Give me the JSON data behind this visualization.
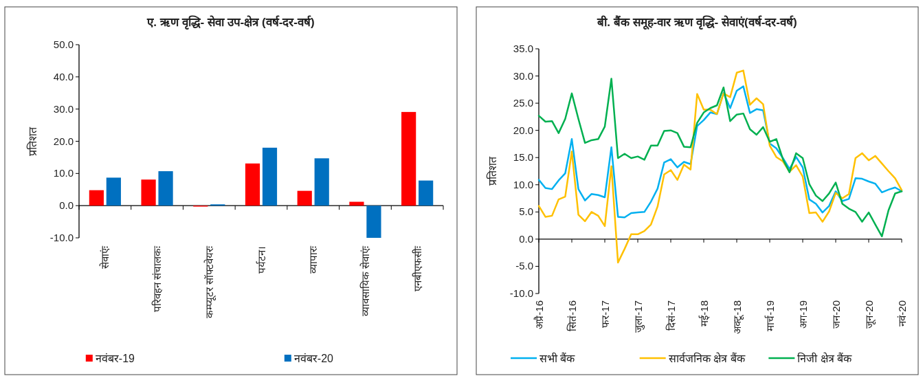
{
  "chart_data": [
    {
      "type": "bar",
      "title": "ए. ऋण वृद्धि- सेवा उप-क्षेत्र (वर्ष-दर-वर्ष)",
      "ylabel": "प्रतिशत",
      "legend": "bottom",
      "categories": [
        "सेवाएंः",
        "परिवहन संचालकः",
        "कम्प्यूटर सॉफ्टवेयरः",
        "पर्यटन।",
        "व्यापारः",
        "व्यावसायिक सेवाएंः",
        "एनबीएफसीः"
      ],
      "series": [
        {
          "name": "नवंबर-19",
          "color": "#ff0000",
          "values": [
            4.8,
            8.1,
            -0.3,
            13.1,
            4.6,
            1.2,
            29.1
          ]
        },
        {
          "name": "नवंबर-20",
          "color": "#0070c0",
          "values": [
            8.7,
            10.7,
            0.4,
            18.0,
            14.7,
            -10.0,
            7.8
          ]
        }
      ],
      "ylim": [
        -10,
        50
      ],
      "yticks": [
        {
          "value": -10,
          "label": "-10.0"
        },
        {
          "value": 0,
          "label": "0.0"
        },
        {
          "value": 10,
          "label": "10.0"
        },
        {
          "value": 20,
          "label": "20.0"
        },
        {
          "value": 30,
          "label": "30.0"
        },
        {
          "value": 40,
          "label": "40.0"
        },
        {
          "value": 50,
          "label": "50.0"
        }
      ]
    },
    {
      "type": "line",
      "title": "बी. बैंक समूह-वार ऋण वृद्धि- सेवाएं(वर्ष-दर-वर्ष)",
      "ylabel": "प्रतिशत",
      "legend": "bottom",
      "x": [
        "2016-04",
        "2016-05",
        "2016-06",
        "2016-07",
        "2016-08",
        "2016-09",
        "2016-10",
        "2016-11",
        "2016-12",
        "2017-01",
        "2017-02",
        "2017-03",
        "2017-04",
        "2017-05",
        "2017-06",
        "2017-07",
        "2017-08",
        "2017-09",
        "2017-10",
        "2017-11",
        "2017-12",
        "2018-01",
        "2018-02",
        "2018-03",
        "2018-04",
        "2018-05",
        "2018-06",
        "2018-07",
        "2018-08",
        "2018-09",
        "2018-10",
        "2018-11",
        "2018-12",
        "2019-01",
        "2019-02",
        "2019-03",
        "2019-04",
        "2019-05",
        "2019-06",
        "2019-07",
        "2019-08",
        "2019-09",
        "2019-10",
        "2019-11",
        "2019-12",
        "2020-01",
        "2020-02",
        "2020-03",
        "2020-04",
        "2020-05",
        "2020-06",
        "2020-07",
        "2020-08",
        "2020-09",
        "2020-10",
        "2020-11"
      ],
      "series": [
        {
          "name": "सभी बैंक",
          "color": "#00b0f0",
          "values": [
            10.9,
            9.4,
            9.2,
            10.8,
            12.1,
            18.4,
            9.2,
            7.1,
            8.3,
            8.1,
            7.7,
            16.9,
            4.1,
            4.0,
            4.8,
            4.9,
            5.0,
            6.9,
            9.3,
            14.1,
            14.7,
            13.2,
            14.2,
            13.8,
            20.8,
            21.9,
            23.3,
            23.0,
            26.9,
            24.1,
            27.3,
            28.1,
            23.2,
            23.9,
            23.7,
            17.6,
            16.7,
            14.9,
            12.9,
            15.1,
            13.2,
            7.3,
            6.5,
            4.9,
            6.1,
            8.8,
            7.0,
            7.4,
            11.2,
            11.1,
            10.6,
            10.2,
            8.6,
            9.1,
            9.5,
            8.8
          ]
        },
        {
          "name": "सार्वजनिक क्षेत्र बैंक",
          "color": "#ffc000",
          "values": [
            6.1,
            4.1,
            4.3,
            7.3,
            7.8,
            16.1,
            4.5,
            3.3,
            5.0,
            4.3,
            2.4,
            13.4,
            -4.3,
            -1.8,
            0.9,
            0.9,
            1.5,
            2.7,
            6.0,
            11.9,
            12.7,
            10.9,
            13.7,
            12.8,
            26.7,
            23.8,
            23.8,
            23.0,
            26.8,
            26.1,
            30.6,
            31.0,
            24.7,
            25.9,
            24.8,
            17.2,
            15.1,
            14.3,
            12.4,
            13.6,
            11.5,
            4.8,
            4.9,
            3.2,
            5.1,
            8.5,
            7.5,
            8.3,
            14.9,
            15.8,
            14.5,
            15.3,
            13.9,
            12.5,
            11.2,
            9.0
          ]
        },
        {
          "name": "निजी क्षेत्र बैंक",
          "color": "#00b050",
          "values": [
            22.7,
            21.6,
            21.7,
            19.5,
            22.1,
            26.8,
            22.1,
            17.7,
            18.2,
            18.4,
            20.7,
            29.5,
            14.9,
            15.7,
            14.9,
            15.2,
            14.6,
            17.2,
            17.2,
            19.9,
            20.0,
            19.5,
            17.0,
            16.9,
            21.4,
            23.3,
            24.1,
            24.6,
            27.9,
            21.7,
            22.9,
            23.1,
            20.2,
            19.2,
            20.6,
            17.9,
            18.4,
            14.7,
            12.3,
            15.8,
            14.9,
            10.1,
            8.0,
            7.0,
            8.4,
            10.4,
            6.5,
            5.6,
            5.0,
            3.2,
            4.9,
            2.7,
            0.5,
            5.3,
            8.4,
            8.8
          ]
        }
      ],
      "xlim": [
        "2016-04",
        "2020-11"
      ],
      "xticks": [
        {
          "value": "2016-04",
          "label": "अप्रै-16"
        },
        {
          "value": "2016-09",
          "label": "सितं-16"
        },
        {
          "value": "2017-02",
          "label": "फर-17"
        },
        {
          "value": "2017-07",
          "label": "जुला-17"
        },
        {
          "value": "2017-12",
          "label": "दिसं-17"
        },
        {
          "value": "2018-05",
          "label": "मई-18"
        },
        {
          "value": "2018-10",
          "label": "अक्टू-18"
        },
        {
          "value": "2019-03",
          "label": "मार्च-19"
        },
        {
          "value": "2019-08",
          "label": "अग-19"
        },
        {
          "value": "2020-01",
          "label": "जन-20"
        },
        {
          "value": "2020-06",
          "label": "जून-20"
        },
        {
          "value": "2020-11",
          "label": "नवं-20"
        }
      ],
      "ylim": [
        -10,
        35
      ],
      "yticks": [
        {
          "value": -10,
          "label": "-10.0"
        },
        {
          "value": -5,
          "label": "-5.0"
        },
        {
          "value": 0,
          "label": "0.0"
        },
        {
          "value": 5,
          "label": "5.0"
        },
        {
          "value": 10,
          "label": "10.0"
        },
        {
          "value": 15,
          "label": "15.0"
        },
        {
          "value": 20,
          "label": "20.0"
        },
        {
          "value": 25,
          "label": "25.0"
        },
        {
          "value": 30,
          "label": "30.0"
        },
        {
          "value": 35,
          "label": "35.0"
        }
      ]
    }
  ]
}
